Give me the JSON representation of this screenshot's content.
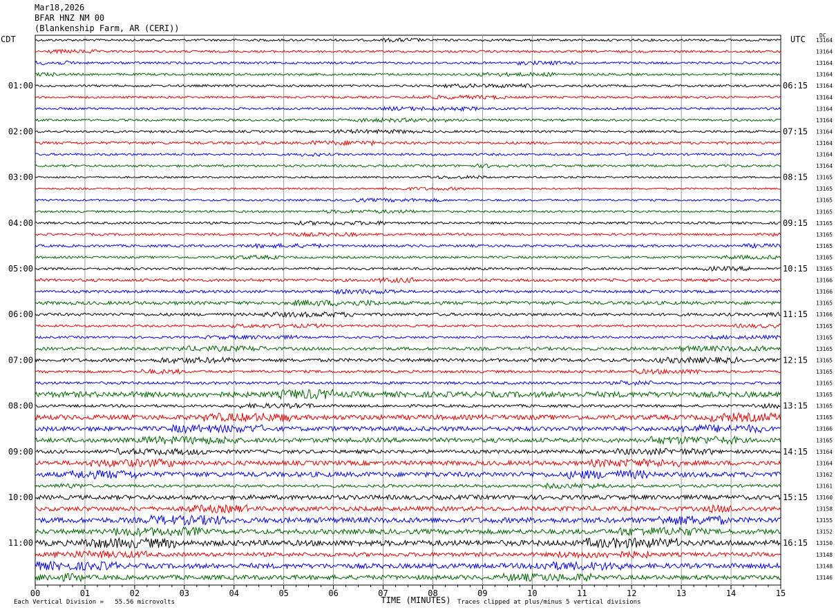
{
  "header": {
    "date": "Mar18,2026",
    "station": "BFAR HNZ NM 00",
    "location": "(Blankenship Farm, AR (CERI))"
  },
  "left_tz": "CDT",
  "right_tz": "UTC",
  "dc_label": "DC",
  "footer": {
    "scale_note": "Each Vertical Division =   55.56 microvolts",
    "clip_note": "Traces clipped at plus/minus 5 vertical divisions"
  },
  "colors": {
    "trace_cycle": [
      "#000000",
      "#e00000",
      "#0000e0",
      "#006400"
    ],
    "grid": "#999999"
  },
  "chart_data": {
    "type": "line",
    "title": "BFAR HNZ NM 00",
    "xlabel": "TIME (MINUTES)",
    "ylabel": "",
    "xlim": [
      0,
      15
    ],
    "x_ticks": [
      "00",
      "01",
      "02",
      "03",
      "04",
      "05",
      "06",
      "07",
      "08",
      "09",
      "10",
      "11",
      "12",
      "13",
      "14",
      "15"
    ],
    "left_hour_labels": [
      "01:00",
      "02:00",
      "03:00",
      "04:00",
      "05:00",
      "06:00",
      "07:00",
      "08:00",
      "09:00",
      "10:00",
      "11:00"
    ],
    "right_hour_labels": [
      "06:15",
      "07:15",
      "08:15",
      "09:15",
      "10:15",
      "11:15",
      "12:15",
      "13:15",
      "14:15",
      "15:15",
      "16:15"
    ],
    "trace_count": 48,
    "trace_amplitudes": [
      1,
      1,
      1,
      1,
      1,
      1,
      1,
      1,
      1,
      1.2,
      1,
      1,
      0.8,
      0.8,
      0.9,
      0.9,
      1,
      1,
      1.1,
      1,
      1.1,
      1.3,
      1.2,
      1.5,
      1.3,
      1,
      1,
      1.4,
      1.5,
      1.2,
      1.2,
      2.5,
      1.2,
      2.2,
      2,
      2,
      1.6,
      2,
      2.2,
      1.3,
      2,
      2,
      2.4,
      2.2,
      2.5,
      1.8,
      2.2,
      2
    ],
    "dc_values": [
      "13164",
      "13164",
      "13164",
      "13164",
      "13164",
      "13164",
      "13164",
      "13164",
      "13164",
      "13164",
      "13164",
      "13164",
      "13165",
      "13165",
      "13165",
      "13165",
      "13165",
      "13165",
      "13165",
      "13165",
      "13165",
      "13166",
      "13166",
      "13165",
      "13166",
      "13165",
      "13165",
      "13165",
      "13165",
      "13165",
      "13165",
      "13165",
      "13165",
      "13165",
      "13166",
      "13165",
      "13164",
      "13164",
      "13162",
      "13161",
      "13160",
      "13158",
      "13155",
      "13152",
      "13150",
      "13148",
      "13148",
      "13146"
    ]
  }
}
